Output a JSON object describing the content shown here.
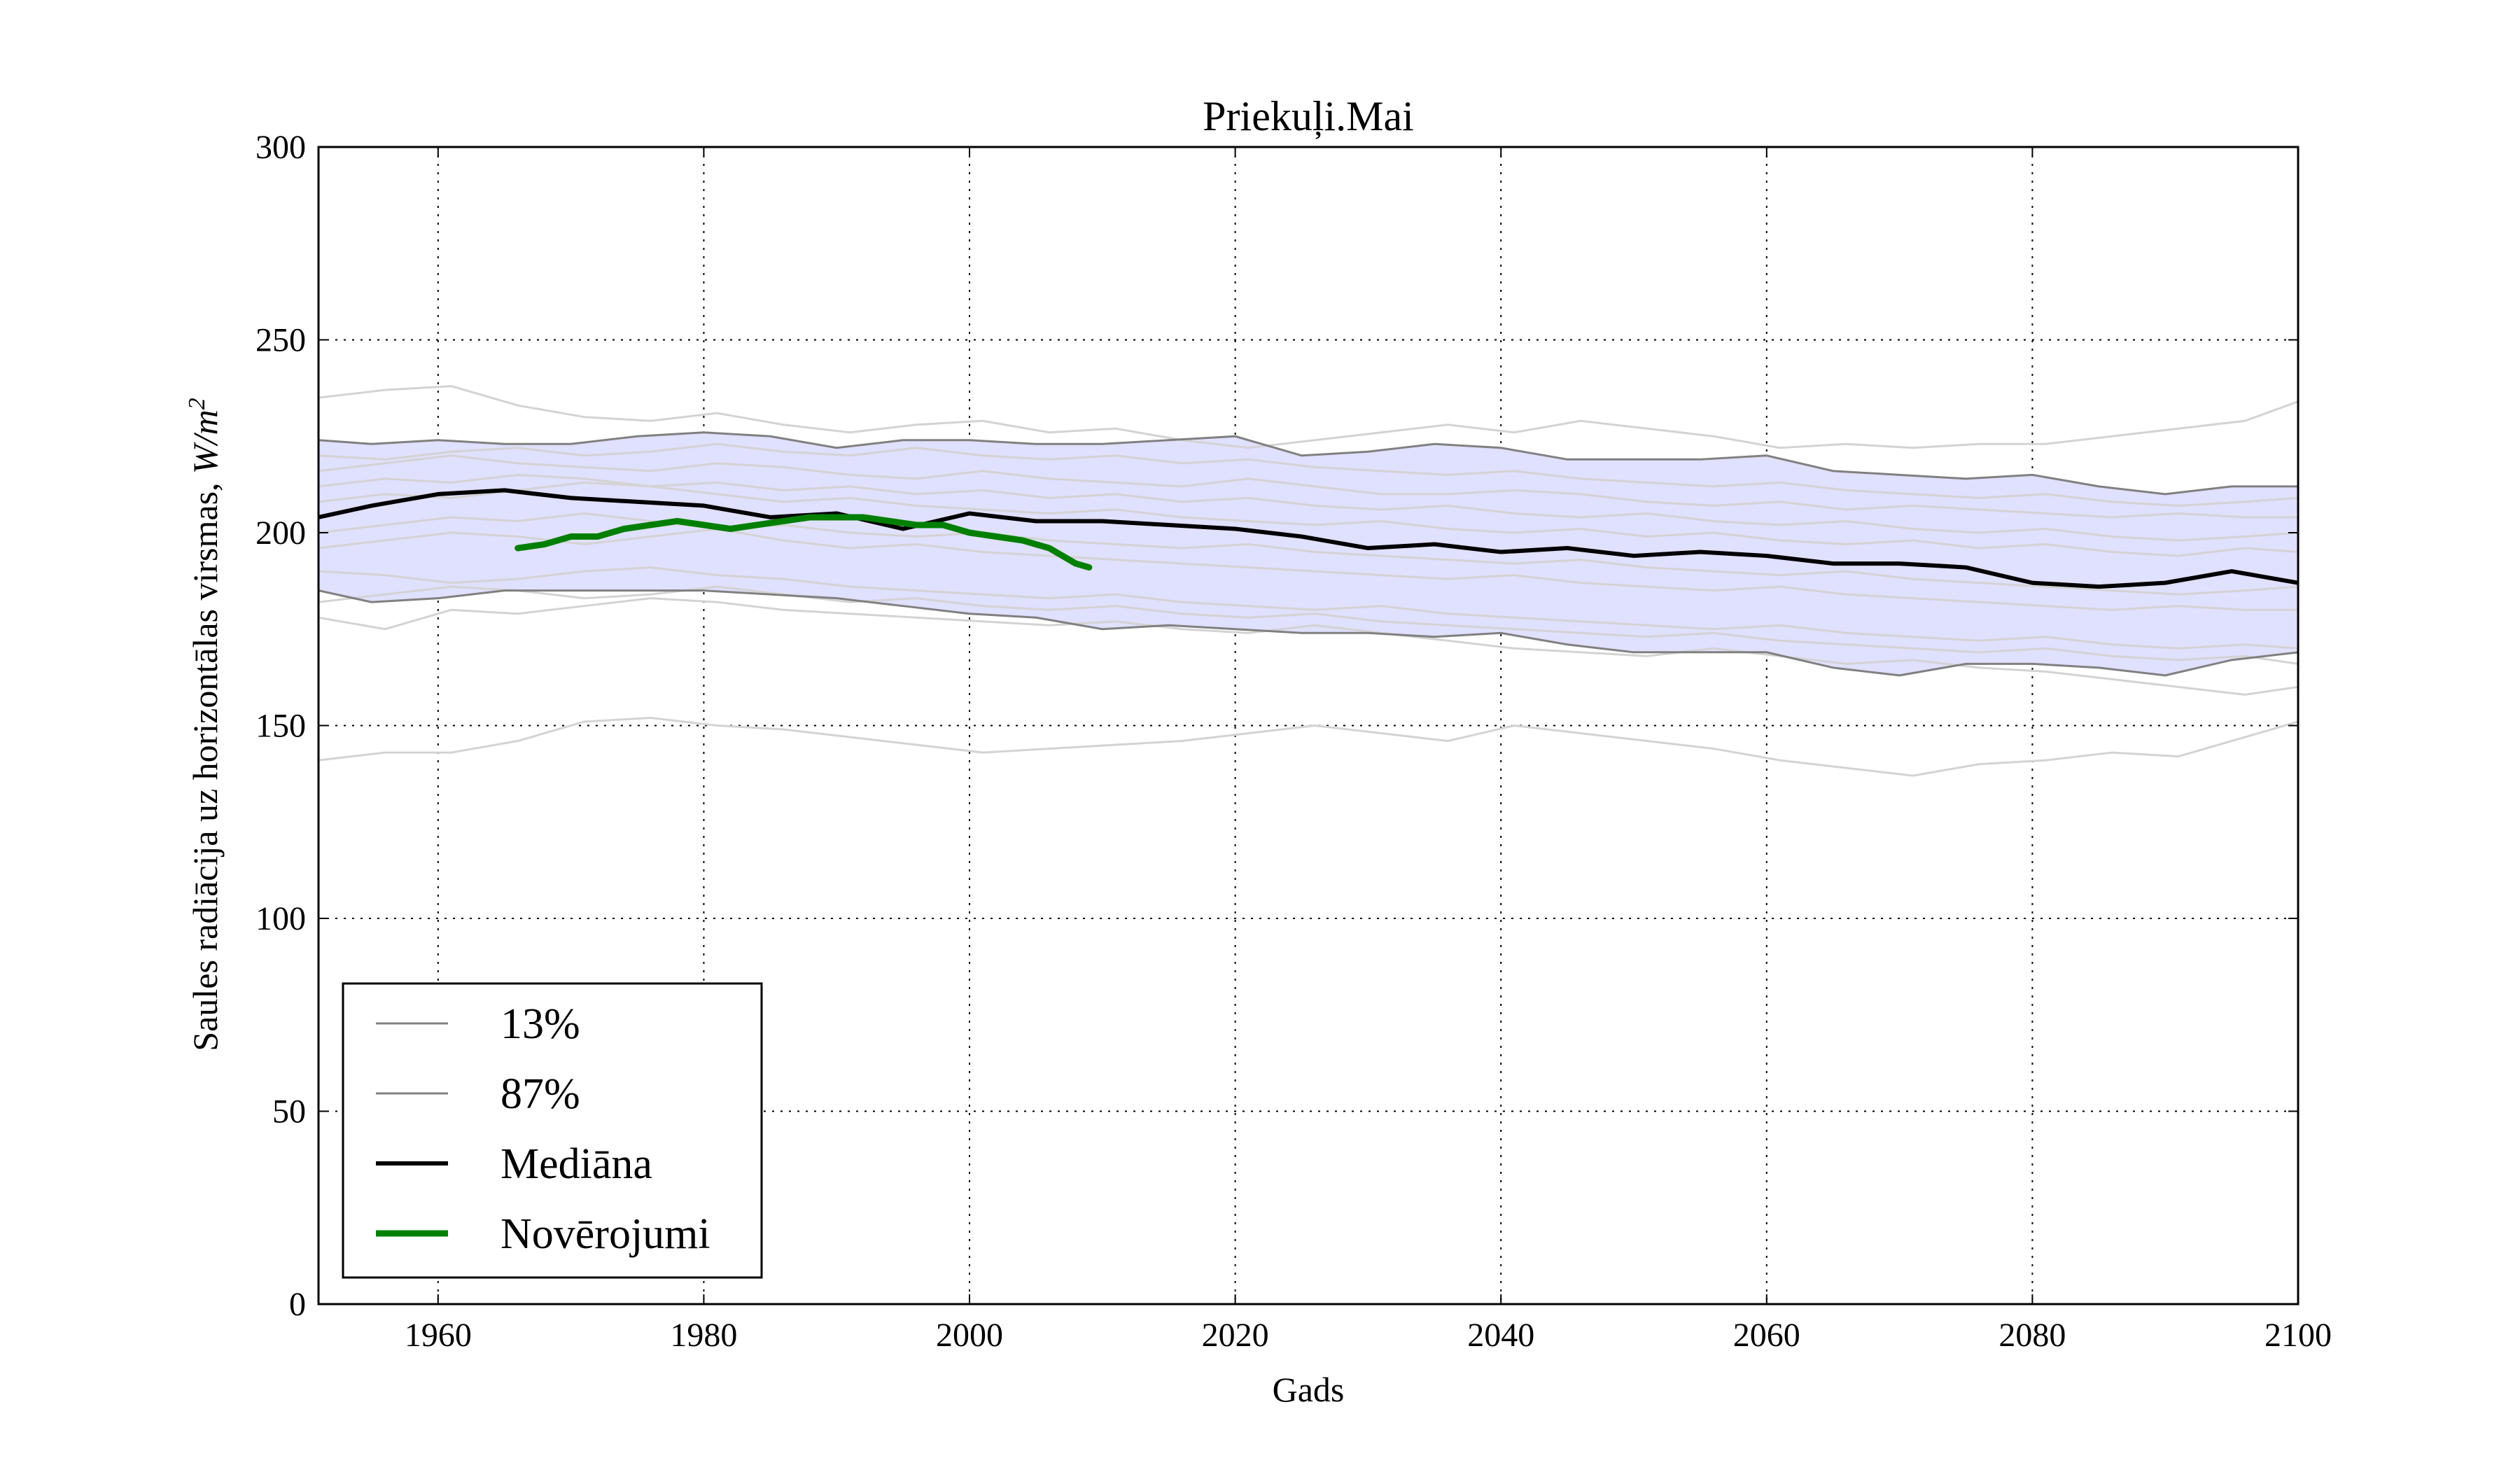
{
  "chart_data": {
    "type": "line",
    "title": "Priekuļi.Mai",
    "xlabel": "Gads",
    "ylabel": "Saules radiācija uz horizontālas virsmas, W/m²",
    "ylabel_plain": "Saules radiācija uz horizontālas virsmas, ",
    "ylabel_unit_base": "W/m",
    "ylabel_unit_exp": "2",
    "xlim": [
      1951,
      2100
    ],
    "ylim": [
      0,
      300
    ],
    "xticks": [
      1960,
      1980,
      2000,
      2020,
      2040,
      2060,
      2080,
      2100
    ],
    "yticks": [
      0,
      50,
      100,
      150,
      200,
      250,
      300
    ],
    "grid": true,
    "legend_position": "lower-left",
    "band": {
      "fill": "#e0e0ff",
      "x": [
        1951,
        1955,
        1960,
        1965,
        1970,
        1975,
        1980,
        1985,
        1990,
        1995,
        2000,
        2005,
        2010,
        2015,
        2020,
        2025,
        2030,
        2035,
        2040,
        2045,
        2050,
        2055,
        2060,
        2065,
        2070,
        2075,
        2080,
        2085,
        2090,
        2095,
        2100
      ],
      "lower": [
        185,
        182,
        183,
        185,
        185,
        185,
        185,
        184,
        183,
        181,
        179,
        178,
        175,
        176,
        175,
        174,
        174,
        173,
        174,
        171,
        169,
        169,
        169,
        165,
        163,
        166,
        166,
        165,
        163,
        167,
        169
      ],
      "upper": [
        224,
        223,
        224,
        223,
        223,
        225,
        226,
        225,
        222,
        224,
        224,
        223,
        223,
        224,
        225,
        220,
        221,
        223,
        222,
        219,
        219,
        219,
        220,
        216,
        215,
        214,
        215,
        212,
        210,
        212,
        212
      ]
    },
    "series": [
      {
        "name": "13%",
        "color": "#808080",
        "width": 3,
        "x": [
          1951,
          1955,
          1960,
          1965,
          1970,
          1975,
          1980,
          1985,
          1990,
          1995,
          2000,
          2005,
          2010,
          2015,
          2020,
          2025,
          2030,
          2035,
          2040,
          2045,
          2050,
          2055,
          2060,
          2065,
          2070,
          2075,
          2080,
          2085,
          2090,
          2095,
          2100
        ],
        "values": [
          185,
          182,
          183,
          185,
          185,
          185,
          185,
          184,
          183,
          181,
          179,
          178,
          175,
          176,
          175,
          174,
          174,
          173,
          174,
          171,
          169,
          169,
          169,
          165,
          163,
          166,
          166,
          165,
          163,
          167,
          169
        ]
      },
      {
        "name": "87%",
        "color": "#808080",
        "width": 3,
        "x": [
          1951,
          1955,
          1960,
          1965,
          1970,
          1975,
          1980,
          1985,
          1990,
          1995,
          2000,
          2005,
          2010,
          2015,
          2020,
          2025,
          2030,
          2035,
          2040,
          2045,
          2050,
          2055,
          2060,
          2065,
          2070,
          2075,
          2080,
          2085,
          2090,
          2095,
          2100
        ],
        "values": [
          224,
          223,
          224,
          223,
          223,
          225,
          226,
          225,
          222,
          224,
          224,
          223,
          223,
          224,
          225,
          220,
          221,
          223,
          222,
          219,
          219,
          219,
          220,
          216,
          215,
          214,
          215,
          212,
          210,
          212,
          212
        ]
      },
      {
        "name": "Mediāna",
        "color": "#000000",
        "width": 6,
        "x": [
          1951,
          1955,
          1960,
          1965,
          1970,
          1975,
          1980,
          1985,
          1990,
          1995,
          2000,
          2005,
          2010,
          2015,
          2020,
          2025,
          2030,
          2035,
          2040,
          2045,
          2050,
          2055,
          2060,
          2065,
          2070,
          2075,
          2080,
          2085,
          2090,
          2095,
          2100
        ],
        "values": [
          204,
          207,
          210,
          211,
          209,
          208,
          207,
          204,
          205,
          201,
          205,
          203,
          203,
          202,
          201,
          199,
          196,
          197,
          195,
          196,
          194,
          195,
          194,
          192,
          192,
          191,
          187,
          186,
          187,
          190,
          187
        ]
      },
      {
        "name": "Novērojumi",
        "color": "#007f00",
        "width": 9,
        "x": [
          1966,
          1968,
          1970,
          1972,
          1974,
          1976,
          1978,
          1980,
          1982,
          1984,
          1986,
          1988,
          1990,
          1992,
          1994,
          1996,
          1998,
          2000,
          2002,
          2004,
          2006,
          2008,
          2009
        ],
        "values": [
          196,
          197,
          199,
          199,
          201,
          202,
          203,
          202,
          201,
          202,
          203,
          204,
          204,
          204,
          203,
          202,
          202,
          200,
          199,
          198,
          196,
          192,
          191
        ]
      }
    ],
    "ensemble_members": [
      {
        "x": [
          1951,
          1956,
          1961,
          1966,
          1971,
          1976,
          1981,
          1986,
          1991,
          1996,
          2001,
          2006,
          2011,
          2016,
          2021,
          2026,
          2031,
          2036,
          2041,
          2046,
          2051,
          2056,
          2061,
          2066,
          2071,
          2076,
          2081,
          2086,
          2091,
          2096,
          2100
        ],
        "values": [
          235,
          237,
          238,
          233,
          230,
          229,
          231,
          228,
          226,
          228,
          229,
          226,
          227,
          224,
          222,
          224,
          226,
          228,
          226,
          229,
          227,
          225,
          222,
          223,
          222,
          223,
          223,
          225,
          227,
          229,
          234
        ]
      },
      {
        "x": [
          1951,
          1956,
          1961,
          1966,
          1971,
          1976,
          1981,
          1986,
          1991,
          1996,
          2001,
          2006,
          2011,
          2016,
          2021,
          2026,
          2031,
          2036,
          2041,
          2046,
          2051,
          2056,
          2061,
          2066,
          2071,
          2076,
          2081,
          2086,
          2091,
          2096,
          2100
        ],
        "values": [
          141,
          143,
          143,
          146,
          151,
          152,
          150,
          149,
          147,
          145,
          143,
          144,
          145,
          146,
          148,
          150,
          148,
          146,
          150,
          148,
          146,
          144,
          141,
          139,
          137,
          140,
          141,
          143,
          142,
          147,
          151
        ]
      },
      {
        "x": [
          1951,
          1956,
          1961,
          1966,
          1971,
          1976,
          1981,
          1986,
          1991,
          1996,
          2001,
          2006,
          2011,
          2016,
          2021,
          2026,
          2031,
          2036,
          2041,
          2046,
          2051,
          2056,
          2061,
          2066,
          2071,
          2076,
          2081,
          2086,
          2091,
          2096,
          2100
        ],
        "values": [
          216,
          218,
          220,
          218,
          217,
          216,
          218,
          217,
          215,
          214,
          216,
          214,
          213,
          212,
          214,
          212,
          210,
          210,
          211,
          210,
          208,
          207,
          208,
          206,
          207,
          206,
          205,
          204,
          205,
          204,
          204
        ]
      },
      {
        "x": [
          1951,
          1956,
          1961,
          1966,
          1971,
          1976,
          1981,
          1986,
          1991,
          1996,
          2001,
          2006,
          2011,
          2016,
          2021,
          2026,
          2031,
          2036,
          2041,
          2046,
          2051,
          2056,
          2061,
          2066,
          2071,
          2076,
          2081,
          2086,
          2091,
          2096,
          2100
        ],
        "values": [
          208,
          210,
          209,
          211,
          213,
          212,
          210,
          208,
          209,
          207,
          206,
          205,
          206,
          204,
          203,
          202,
          203,
          201,
          200,
          201,
          199,
          200,
          198,
          197,
          198,
          196,
          197,
          195,
          194,
          196,
          195
        ]
      },
      {
        "x": [
          1951,
          1956,
          1961,
          1966,
          1971,
          1976,
          1981,
          1986,
          1991,
          1996,
          2001,
          2006,
          2011,
          2016,
          2021,
          2026,
          2031,
          2036,
          2041,
          2046,
          2051,
          2056,
          2061,
          2066,
          2071,
          2076,
          2081,
          2086,
          2091,
          2096,
          2100
        ],
        "values": [
          196,
          198,
          200,
          199,
          197,
          199,
          201,
          198,
          196,
          197,
          195,
          194,
          193,
          192,
          191,
          190,
          189,
          188,
          189,
          187,
          186,
          185,
          186,
          184,
          183,
          182,
          181,
          180,
          181,
          180,
          180
        ]
      },
      {
        "x": [
          1951,
          1956,
          1961,
          1966,
          1971,
          1976,
          1981,
          1986,
          1991,
          1996,
          2001,
          2006,
          2011,
          2016,
          2021,
          2026,
          2031,
          2036,
          2041,
          2046,
          2051,
          2056,
          2061,
          2066,
          2071,
          2076,
          2081,
          2086,
          2091,
          2096,
          2100
        ],
        "values": [
          178,
          175,
          180,
          179,
          181,
          183,
          182,
          180,
          179,
          178,
          177,
          176,
          177,
          175,
          174,
          176,
          174,
          172,
          170,
          169,
          168,
          170,
          168,
          166,
          167,
          165,
          164,
          162,
          160,
          158,
          160
        ]
      },
      {
        "x": [
          1951,
          1956,
          1961,
          1966,
          1971,
          1976,
          1981,
          1986,
          1991,
          1996,
          2001,
          2006,
          2011,
          2016,
          2021,
          2026,
          2031,
          2036,
          2041,
          2046,
          2051,
          2056,
          2061,
          2066,
          2071,
          2076,
          2081,
          2086,
          2091,
          2096,
          2100
        ],
        "values": [
          190,
          189,
          187,
          188,
          190,
          191,
          189,
          188,
          186,
          185,
          184,
          183,
          184,
          182,
          181,
          180,
          181,
          179,
          178,
          177,
          176,
          175,
          176,
          174,
          173,
          172,
          173,
          171,
          170,
          171,
          170
        ]
      },
      {
        "x": [
          1951,
          1956,
          1961,
          1966,
          1971,
          1976,
          1981,
          1986,
          1991,
          1996,
          2001,
          2006,
          2011,
          2016,
          2021,
          2026,
          2031,
          2036,
          2041,
          2046,
          2051,
          2056,
          2061,
          2066,
          2071,
          2076,
          2081,
          2086,
          2091,
          2096,
          2100
        ],
        "values": [
          212,
          214,
          213,
          215,
          214,
          212,
          213,
          211,
          212,
          210,
          211,
          209,
          210,
          208,
          209,
          207,
          206,
          207,
          205,
          204,
          205,
          203,
          202,
          203,
          201,
          200,
          201,
          199,
          198,
          199,
          200
        ]
      },
      {
        "x": [
          1951,
          1956,
          1961,
          1966,
          1971,
          1976,
          1981,
          1986,
          1991,
          1996,
          2001,
          2006,
          2011,
          2016,
          2021,
          2026,
          2031,
          2036,
          2041,
          2046,
          2051,
          2056,
          2061,
          2066,
          2071,
          2076,
          2081,
          2086,
          2091,
          2096,
          2100
        ],
        "values": [
          200,
          202,
          204,
          203,
          205,
          203,
          201,
          202,
          200,
          199,
          200,
          198,
          197,
          196,
          197,
          195,
          194,
          193,
          192,
          193,
          191,
          190,
          189,
          190,
          188,
          187,
          186,
          185,
          184,
          185,
          186
        ]
      },
      {
        "x": [
          1951,
          1956,
          1961,
          1966,
          1971,
          1976,
          1981,
          1986,
          1991,
          1996,
          2001,
          2006,
          2011,
          2016,
          2021,
          2026,
          2031,
          2036,
          2041,
          2046,
          2051,
          2056,
          2061,
          2066,
          2071,
          2076,
          2081,
          2086,
          2091,
          2096,
          2100
        ],
        "values": [
          220,
          219,
          221,
          222,
          220,
          221,
          223,
          221,
          220,
          222,
          220,
          219,
          220,
          218,
          219,
          217,
          216,
          215,
          216,
          214,
          213,
          212,
          213,
          211,
          210,
          209,
          210,
          208,
          207,
          208,
          209
        ]
      },
      {
        "x": [
          1951,
          1956,
          1961,
          1966,
          1971,
          1976,
          1981,
          1986,
          1991,
          1996,
          2001,
          2006,
          2011,
          2016,
          2021,
          2026,
          2031,
          2036,
          2041,
          2046,
          2051,
          2056,
          2061,
          2066,
          2071,
          2076,
          2081,
          2086,
          2091,
          2096,
          2100
        ],
        "values": [
          182,
          184,
          186,
          185,
          183,
          184,
          186,
          184,
          182,
          183,
          181,
          180,
          181,
          179,
          178,
          179,
          177,
          176,
          175,
          174,
          173,
          174,
          172,
          171,
          170,
          169,
          170,
          168,
          167,
          168,
          166
        ]
      }
    ],
    "legend": [
      {
        "label": "13%",
        "color": "#808080",
        "width": 3
      },
      {
        "label": "87%",
        "color": "#808080",
        "width": 3
      },
      {
        "label": "Mediāna",
        "color": "#000000",
        "width": 6
      },
      {
        "label": "Novērojumi",
        "color": "#007f00",
        "width": 9
      }
    ]
  }
}
